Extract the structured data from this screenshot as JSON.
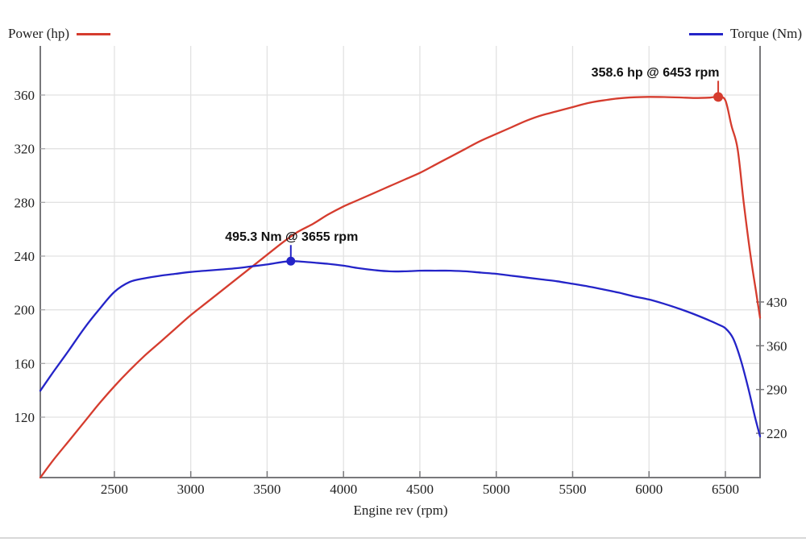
{
  "chart_data": {
    "type": "line",
    "title": "",
    "xlabel": "Engine rev (rpm)",
    "legend_position": "top",
    "grid": true,
    "axes": {
      "x": {
        "min": 2015,
        "max": 6727,
        "ticks": [
          2500,
          3000,
          3500,
          4000,
          4500,
          5000,
          5500,
          6000,
          6500
        ]
      },
      "power": {
        "side": "left",
        "min": 75,
        "max": 396.6,
        "ticks": [
          120,
          160,
          200,
          240,
          280,
          320,
          360
        ]
      },
      "torque": {
        "side": "right",
        "min": 149.2,
        "max": 839.5,
        "ticks": [
          220,
          290,
          360,
          430
        ]
      }
    },
    "series": [
      {
        "name": "Power (hp)",
        "axis": "power",
        "color": "#d53c2e",
        "points": [
          [
            2015,
            75
          ],
          [
            2100,
            88
          ],
          [
            2200,
            102
          ],
          [
            2300,
            116
          ],
          [
            2400,
            130
          ],
          [
            2500,
            143
          ],
          [
            2600,
            155
          ],
          [
            2700,
            166
          ],
          [
            2800,
            176
          ],
          [
            2900,
            186
          ],
          [
            3000,
            196
          ],
          [
            3100,
            205
          ],
          [
            3200,
            214
          ],
          [
            3300,
            223
          ],
          [
            3400,
            232
          ],
          [
            3500,
            241
          ],
          [
            3600,
            250
          ],
          [
            3700,
            258
          ],
          [
            3800,
            264
          ],
          [
            3900,
            271
          ],
          [
            4000,
            277
          ],
          [
            4100,
            282
          ],
          [
            4200,
            287
          ],
          [
            4300,
            292
          ],
          [
            4400,
            297
          ],
          [
            4500,
            302
          ],
          [
            4600,
            308
          ],
          [
            4700,
            314
          ],
          [
            4800,
            320
          ],
          [
            4900,
            326
          ],
          [
            5000,
            331
          ],
          [
            5100,
            336
          ],
          [
            5200,
            341
          ],
          [
            5300,
            345
          ],
          [
            5400,
            348
          ],
          [
            5500,
            351
          ],
          [
            5600,
            354
          ],
          [
            5700,
            356
          ],
          [
            5800,
            357.5
          ],
          [
            5900,
            358.3
          ],
          [
            6000,
            358.6
          ],
          [
            6100,
            358.5
          ],
          [
            6200,
            358.2
          ],
          [
            6300,
            357.8
          ],
          [
            6400,
            358.1
          ],
          [
            6453,
            358.6
          ],
          [
            6500,
            356
          ],
          [
            6540,
            337
          ],
          [
            6580,
            320
          ],
          [
            6620,
            280
          ],
          [
            6665,
            240
          ],
          [
            6700,
            214
          ],
          [
            6727,
            194
          ]
        ]
      },
      {
        "name": "Torque (Nm)",
        "axis": "torque",
        "color": "#2424c8",
        "points": [
          [
            2015,
            288
          ],
          [
            2100,
            318
          ],
          [
            2200,
            352
          ],
          [
            2300,
            387
          ],
          [
            2400,
            418
          ],
          [
            2500,
            446
          ],
          [
            2600,
            462
          ],
          [
            2700,
            468
          ],
          [
            2800,
            472
          ],
          [
            2900,
            475
          ],
          [
            3000,
            478
          ],
          [
            3100,
            480
          ],
          [
            3200,
            482
          ],
          [
            3300,
            484
          ],
          [
            3400,
            487
          ],
          [
            3500,
            490
          ],
          [
            3600,
            494
          ],
          [
            3655,
            495.3
          ],
          [
            3700,
            495
          ],
          [
            3800,
            493
          ],
          [
            3900,
            491
          ],
          [
            4000,
            488
          ],
          [
            4100,
            484
          ],
          [
            4200,
            481
          ],
          [
            4300,
            479
          ],
          [
            4400,
            479
          ],
          [
            4500,
            480
          ],
          [
            4600,
            480
          ],
          [
            4700,
            480
          ],
          [
            4800,
            479
          ],
          [
            4900,
            477
          ],
          [
            5000,
            475
          ],
          [
            5100,
            472
          ],
          [
            5200,
            469
          ],
          [
            5300,
            466
          ],
          [
            5400,
            463
          ],
          [
            5500,
            459
          ],
          [
            5600,
            455
          ],
          [
            5700,
            450
          ],
          [
            5800,
            445
          ],
          [
            5900,
            439
          ],
          [
            6000,
            434
          ],
          [
            6100,
            427
          ],
          [
            6200,
            419
          ],
          [
            6300,
            410
          ],
          [
            6400,
            400
          ],
          [
            6453,
            394
          ],
          [
            6500,
            388
          ],
          [
            6550,
            372
          ],
          [
            6600,
            338
          ],
          [
            6650,
            292
          ],
          [
            6695,
            245
          ],
          [
            6727,
            215
          ]
        ]
      }
    ],
    "annotations": [
      {
        "label": "358.6 hp @ 6453 rpm",
        "series": "power",
        "rpm": 6453,
        "value": 358.6,
        "color": "#d53c2e"
      },
      {
        "label": "495.3 Nm @ 3655 rpm",
        "series": "torque",
        "rpm": 3655,
        "value": 495.3,
        "color": "#2424c8"
      }
    ],
    "colors": {
      "axis_line": "#78787b",
      "gridline": "#e2e2e2",
      "tick_text": "#212121",
      "annotation_text": "#101010",
      "divider": "#d8d8d8"
    }
  }
}
